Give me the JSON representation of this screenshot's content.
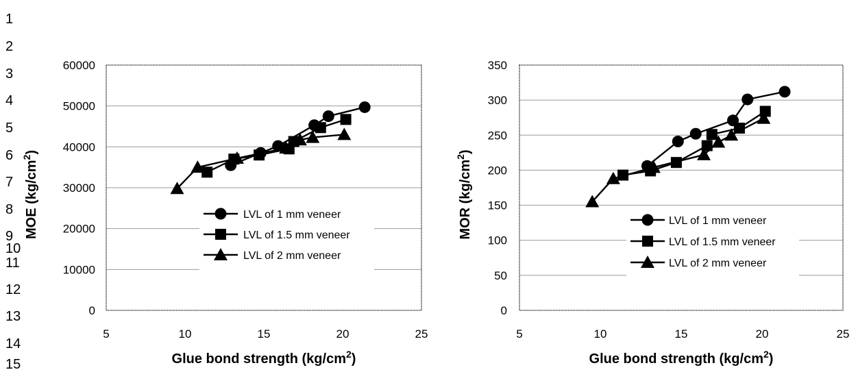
{
  "line_numbers": [
    "1",
    "2",
    "3",
    "4",
    "5",
    "6",
    "7",
    "8",
    "9",
    "10",
    "11",
    "12",
    "13",
    "14",
    "15"
  ],
  "chart_data": [
    {
      "type": "line",
      "xlabel": "Glue bond strength (kg/cm2)",
      "ylabel": "MOE (kg/cm2)",
      "xlim": [
        5,
        25
      ],
      "ylim": [
        0,
        60000
      ],
      "xticks": [
        5,
        10,
        15,
        20,
        25
      ],
      "yticks": [
        0,
        10000,
        20000,
        30000,
        40000,
        50000,
        60000
      ],
      "grid": "horizontal",
      "legend_position": "lower-center",
      "series": [
        {
          "name": "LVL of 1 mm veneer",
          "marker": "circle",
          "x": [
            12.9,
            14.8,
            15.9,
            18.2,
            19.1,
            21.4
          ],
          "y": [
            35500,
            38500,
            40200,
            45300,
            47500,
            49700
          ]
        },
        {
          "name": "LVL of 1.5 mm veneer",
          "marker": "square",
          "x": [
            11.4,
            13.1,
            14.7,
            16.6,
            16.9,
            18.6,
            20.2
          ],
          "y": [
            33800,
            37000,
            38000,
            39500,
            41300,
            44700,
            46700
          ]
        },
        {
          "name": "LVL of 2 mm veneer",
          "marker": "triangle",
          "x": [
            9.5,
            10.8,
            13.3,
            16.4,
            17.3,
            18.1,
            20.1
          ],
          "y": [
            29800,
            35000,
            37200,
            39700,
            41700,
            42300,
            43000
          ]
        }
      ]
    },
    {
      "type": "line",
      "xlabel": "Glue bond strength (kg/cm2)",
      "ylabel": "MOR (kg/cm2)",
      "xlim": [
        5,
        25
      ],
      "ylim": [
        0,
        350
      ],
      "xticks": [
        5,
        10,
        15,
        20,
        25
      ],
      "yticks": [
        0,
        50,
        100,
        150,
        200,
        250,
        300,
        350
      ],
      "grid": "horizontal",
      "legend_position": "lower-center",
      "series": [
        {
          "name": "LVL of 1 mm veneer",
          "marker": "circle",
          "x": [
            12.9,
            14.8,
            15.9,
            18.2,
            19.1,
            21.4
          ],
          "y": [
            206,
            241,
            252,
            271,
            301,
            312
          ]
        },
        {
          "name": "LVL of 1.5 mm veneer",
          "marker": "square",
          "x": [
            11.4,
            13.1,
            14.7,
            16.6,
            16.9,
            18.6,
            20.2
          ],
          "y": [
            193,
            199,
            211,
            235,
            251,
            260,
            284
          ]
        },
        {
          "name": "LVL of 2 mm veneer",
          "marker": "triangle",
          "x": [
            9.5,
            10.8,
            13.3,
            16.4,
            17.3,
            18.1,
            20.1
          ],
          "y": [
            155,
            188,
            204,
            222,
            240,
            250,
            274
          ]
        }
      ]
    }
  ],
  "colors": {
    "series_line": "#000000",
    "grid": "#999999",
    "plot_border": "#000000"
  }
}
